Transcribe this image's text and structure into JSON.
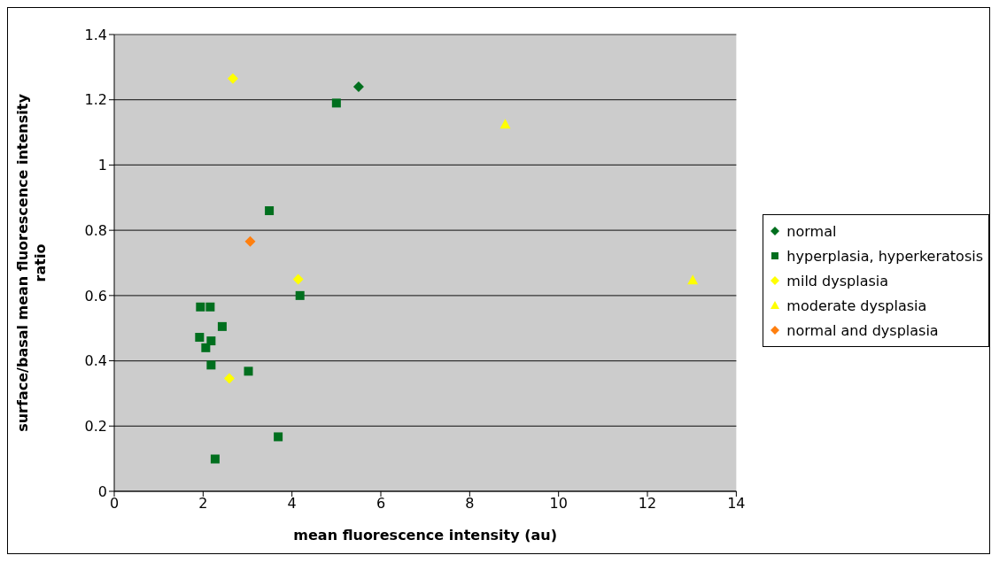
{
  "chart_data": {
    "type": "scatter",
    "xlabel": "mean fluorescence intensity (au)",
    "ylabel": "surface/basal mean fluorescence intensity ratio",
    "xlim": [
      0,
      14
    ],
    "xticks": [
      0,
      2,
      4,
      6,
      8,
      10,
      12,
      14
    ],
    "ylim": [
      0,
      1.4
    ],
    "yticks": [
      0,
      0.2,
      0.4,
      0.6,
      0.8,
      1,
      1.2,
      1.4
    ],
    "grid": "y",
    "legend": "right",
    "series": [
      {
        "name": "normal",
        "color": "#006f1e",
        "marker": "diamond",
        "x": [
          5.5
        ],
        "values": [
          1.24
        ]
      },
      {
        "name": "hyperplasia, hyperkeratosis",
        "color": "#006f1e",
        "marker": "square",
        "x": [
          5.0,
          3.49,
          4.18,
          1.94,
          2.16,
          2.43,
          1.92,
          2.18,
          2.06,
          2.18,
          3.02,
          3.69,
          2.27
        ],
        "values": [
          1.19,
          0.86,
          0.6,
          0.565,
          0.565,
          0.505,
          0.472,
          0.461,
          0.44,
          0.387,
          0.368,
          0.167,
          0.099
        ]
      },
      {
        "name": "mild dysplasia",
        "color": "#ffff00",
        "marker": "diamond",
        "x": [
          2.67,
          4.14,
          2.59
        ],
        "values": [
          1.265,
          0.65,
          0.346
        ]
      },
      {
        "name": "moderate dysplasia",
        "color": "#ffff00",
        "marker": "triangle",
        "x": [
          8.8,
          13.02
        ],
        "values": [
          1.125,
          0.648
        ]
      },
      {
        "name": "normal and dysplasia",
        "color": "#ff7f0e",
        "marker": "diamond",
        "x": [
          3.06
        ],
        "values": [
          0.766
        ]
      }
    ]
  }
}
